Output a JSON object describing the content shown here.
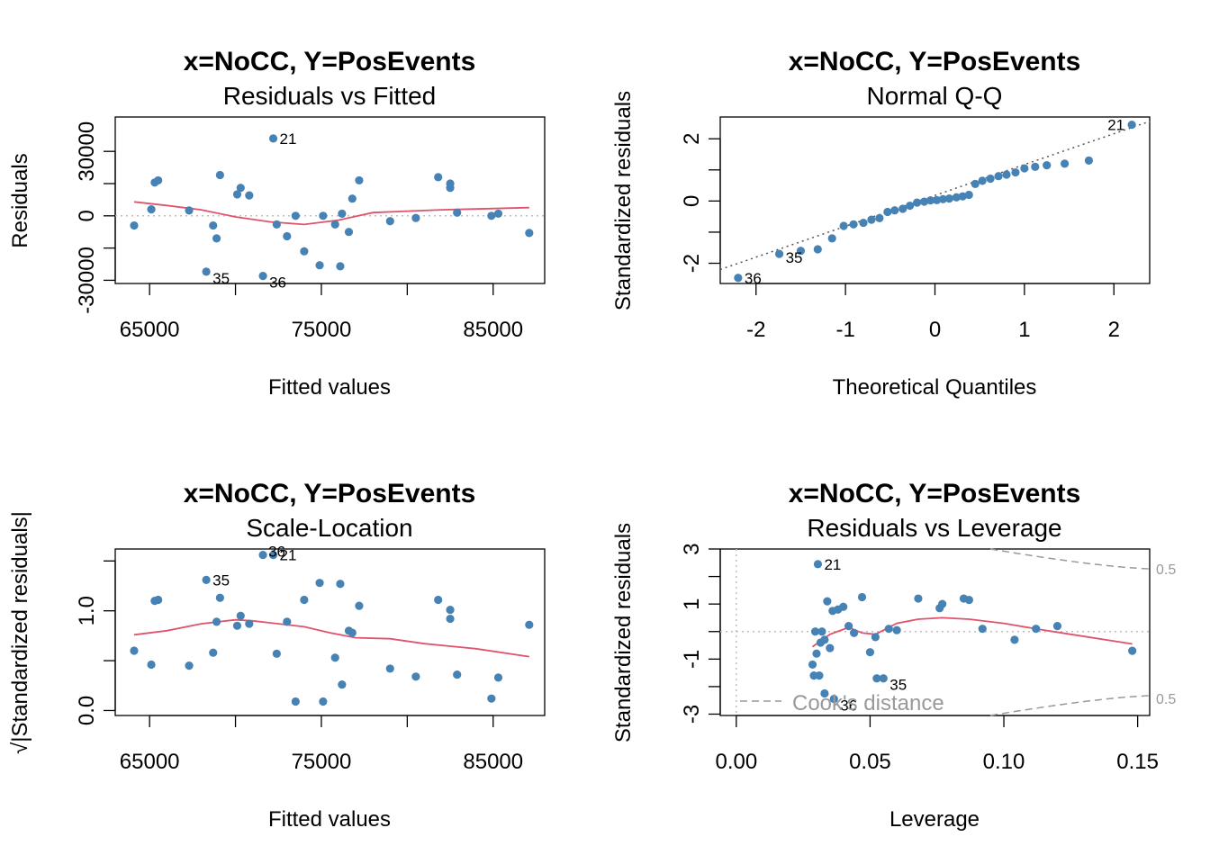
{
  "colors": {
    "points": "#4682b4",
    "smooth": "#df536b",
    "ref": "#bebebe",
    "cook": "#999999"
  },
  "chart_data": [
    {
      "type": "scatter",
      "title": "x=NoCC, Y=PosEvents",
      "subtitle": "Residuals vs Fitted",
      "xlabel": "Fitted values",
      "ylabel": "Residuals",
      "xlim": [
        63000,
        88000
      ],
      "ylim": [
        -31500,
        46000
      ],
      "xticks": [
        65000,
        75000,
        85000
      ],
      "xticks_minor": [
        70000,
        80000
      ],
      "yticks": [
        -30000,
        0,
        30000
      ],
      "yticks_minor": [
        -15000,
        15000
      ],
      "ref_y": 0,
      "points": {
        "x": [
          64100,
          65100,
          65300,
          65500,
          67300,
          68300,
          68700,
          68900,
          69100,
          70100,
          70300,
          70800,
          71600,
          72200,
          72400,
          73000,
          73500,
          74000,
          74900,
          75100,
          75800,
          76100,
          76200,
          76600,
          76800,
          77200,
          79000,
          80500,
          81800,
          82500,
          82500,
          82900,
          84900,
          85300,
          87100
        ],
        "y": [
          -4500,
          3000,
          15500,
          16500,
          2500,
          -26000,
          -4500,
          -10500,
          19000,
          10000,
          13000,
          9500,
          -28000,
          36000,
          -4000,
          -9500,
          0,
          -16500,
          -23000,
          0,
          -4000,
          -23500,
          1000,
          -7500,
          8000,
          16500,
          -2500,
          -1000,
          18000,
          13000,
          15000,
          1500,
          0,
          1000,
          -8000
        ]
      },
      "labels": [
        {
          "text": "21",
          "x": 72200,
          "y": 36000
        },
        {
          "text": "35",
          "x": 68300,
          "y": -26000
        },
        {
          "text": "36",
          "x": 71600,
          "y": -28000
        }
      ],
      "smooth": {
        "x": [
          64100,
          66000,
          68000,
          70000,
          72000,
          74000,
          76000,
          78000,
          80000,
          82000,
          84000,
          87100
        ],
        "y": [
          6500,
          4800,
          2800,
          -500,
          -2800,
          -4000,
          -2000,
          1500,
          2200,
          2800,
          3200,
          3800
        ]
      }
    },
    {
      "type": "scatter",
      "title": "x=NoCC, Y=PosEvents",
      "subtitle": "Normal Q-Q",
      "xlabel": "Theoretical Quantiles",
      "ylabel": "Standardized residuals",
      "xlim": [
        -2.4,
        2.4
      ],
      "ylim": [
        -2.65,
        2.7
      ],
      "xticks": [
        -2,
        -1,
        0,
        1,
        2
      ],
      "yticks": [
        -2,
        0,
        2
      ],
      "yticks_minor": [
        -1,
        1
      ],
      "ref_line": {
        "x1": -2.4,
        "y1": -2.2,
        "x2": 2.4,
        "y2": 2.56
      },
      "points": {
        "x": [
          -2.2,
          -1.74,
          -1.5,
          -1.31,
          -1.15,
          -1.02,
          -0.91,
          -0.8,
          -0.71,
          -0.62,
          -0.53,
          -0.45,
          -0.36,
          -0.28,
          -0.2,
          -0.12,
          -0.05,
          0.02,
          0.09,
          0.16,
          0.24,
          0.31,
          0.38,
          0.45,
          0.53,
          0.62,
          0.71,
          0.8,
          0.9,
          1.0,
          1.12,
          1.25,
          1.45,
          1.72,
          2.2
        ],
        "y": [
          -2.47,
          -1.7,
          -1.6,
          -1.55,
          -1.2,
          -0.8,
          -0.75,
          -0.7,
          -0.6,
          -0.55,
          -0.35,
          -0.3,
          -0.25,
          -0.15,
          -0.05,
          -0.02,
          0.02,
          0.03,
          0.06,
          0.08,
          0.12,
          0.15,
          0.2,
          0.55,
          0.65,
          0.72,
          0.8,
          0.85,
          0.92,
          1.05,
          1.1,
          1.15,
          1.2,
          1.3,
          2.45
        ]
      },
      "labels": [
        {
          "text": "21",
          "x": 2.2,
          "y": 2.45
        },
        {
          "text": "35",
          "x": -1.74,
          "y": -1.7
        },
        {
          "text": "36",
          "x": -2.2,
          "y": -2.47
        }
      ]
    },
    {
      "type": "scatter",
      "title": "x=NoCC, Y=PosEvents",
      "subtitle": "Scale-Location",
      "xlabel": "Fitted values",
      "ylabel": "√|Standardized residuals|",
      "xlim": [
        63000,
        88000
      ],
      "ylim": [
        -0.05,
        1.62
      ],
      "xticks": [
        65000,
        75000,
        85000
      ],
      "xticks_minor": [
        70000,
        80000
      ],
      "yticks": [
        0.0,
        1.0
      ],
      "yticks_minor": [
        0.5,
        1.5
      ],
      "points": {
        "x": [
          64100,
          65100,
          65300,
          65500,
          67300,
          68300,
          68700,
          68900,
          69100,
          70100,
          70300,
          70800,
          71600,
          72200,
          72400,
          73000,
          73500,
          74000,
          74900,
          75100,
          75800,
          76100,
          76200,
          76600,
          76800,
          77200,
          79000,
          80500,
          81800,
          82500,
          82500,
          82900,
          84900,
          85300,
          87100
        ],
        "y": [
          0.6,
          0.46,
          1.1,
          1.11,
          0.45,
          1.31,
          0.58,
          0.89,
          1.13,
          0.85,
          0.95,
          0.87,
          1.56,
          1.56,
          0.57,
          0.89,
          0.09,
          1.11,
          1.28,
          0.09,
          0.53,
          1.27,
          0.26,
          0.8,
          0.78,
          1.05,
          0.42,
          0.34,
          1.11,
          0.92,
          1.01,
          0.36,
          0.12,
          0.33,
          0.86
        ]
      },
      "labels": [
        {
          "text": "35",
          "x": 68300,
          "y": 1.31
        },
        {
          "text": "36",
          "x": 71600,
          "y": 1.56
        },
        {
          "text": "21",
          "x": 72200,
          "y": 1.56
        }
      ],
      "smooth": {
        "x": [
          64100,
          66000,
          68000,
          70000,
          71000,
          72000,
          74000,
          75500,
          77000,
          79000,
          81000,
          84000,
          87100
        ],
        "y": [
          0.76,
          0.8,
          0.87,
          0.91,
          0.9,
          0.88,
          0.84,
          0.78,
          0.73,
          0.72,
          0.67,
          0.62,
          0.54
        ]
      }
    },
    {
      "type": "scatter",
      "title": "x=NoCC, Y=PosEvents",
      "subtitle": "Residuals vs Leverage",
      "xlabel": "Leverage",
      "ylabel": "Standardized residuals",
      "xlim": [
        -0.006,
        0.1545
      ],
      "ylim": [
        -3.05,
        3.0
      ],
      "xticks": [
        "0.00",
        "0.05",
        "0.10",
        "0.15"
      ],
      "xtick_values": [
        0,
        0.05,
        0.1,
        0.15
      ],
      "yticks": [
        -3,
        -1,
        1,
        3
      ],
      "yticks_minor": [
        -2,
        0,
        2
      ],
      "legend": {
        "text": "Cook's distance",
        "position": "bottom-left"
      },
      "cook_contour_labels": [
        "0.5",
        "0.5"
      ],
      "points": {
        "x": [
          0.0285,
          0.029,
          0.0295,
          0.03,
          0.031,
          0.0315,
          0.032,
          0.033,
          0.034,
          0.035,
          0.036,
          0.038,
          0.04,
          0.042,
          0.044,
          0.047,
          0.05,
          0.052,
          0.055,
          0.057,
          0.06,
          0.068,
          0.076,
          0.077,
          0.085,
          0.087,
          0.092,
          0.104,
          0.112,
          0.12,
          0.148,
          0.0305,
          0.033,
          0.0525,
          0.0365
        ],
        "y": [
          -1.2,
          -1.6,
          0.0,
          -0.8,
          -1.6,
          -0.4,
          0.0,
          -0.3,
          1.1,
          -0.6,
          0.75,
          0.8,
          0.9,
          0.2,
          -0.05,
          1.25,
          -0.75,
          -0.2,
          -1.7,
          0.1,
          0.05,
          1.2,
          0.85,
          1.0,
          1.2,
          1.15,
          0.1,
          -0.3,
          0.1,
          0.2,
          -0.7,
          2.45,
          -2.25,
          -1.7,
          -2.45
        ]
      },
      "labels": [
        {
          "text": "21",
          "x": 0.0305,
          "y": 2.45
        },
        {
          "text": "35",
          "x": 0.055,
          "y": -1.7
        },
        {
          "text": "36",
          "x": 0.0365,
          "y": -2.45
        }
      ],
      "smooth": {
        "x": [
          0.0285,
          0.035,
          0.042,
          0.047,
          0.052,
          0.06,
          0.068,
          0.077,
          0.087,
          0.1,
          0.112,
          0.125,
          0.148
        ],
        "y": [
          -0.55,
          -0.1,
          0.15,
          -0.05,
          -0.1,
          0.3,
          0.45,
          0.5,
          0.45,
          0.3,
          0.1,
          -0.1,
          -0.45
        ]
      }
    }
  ]
}
